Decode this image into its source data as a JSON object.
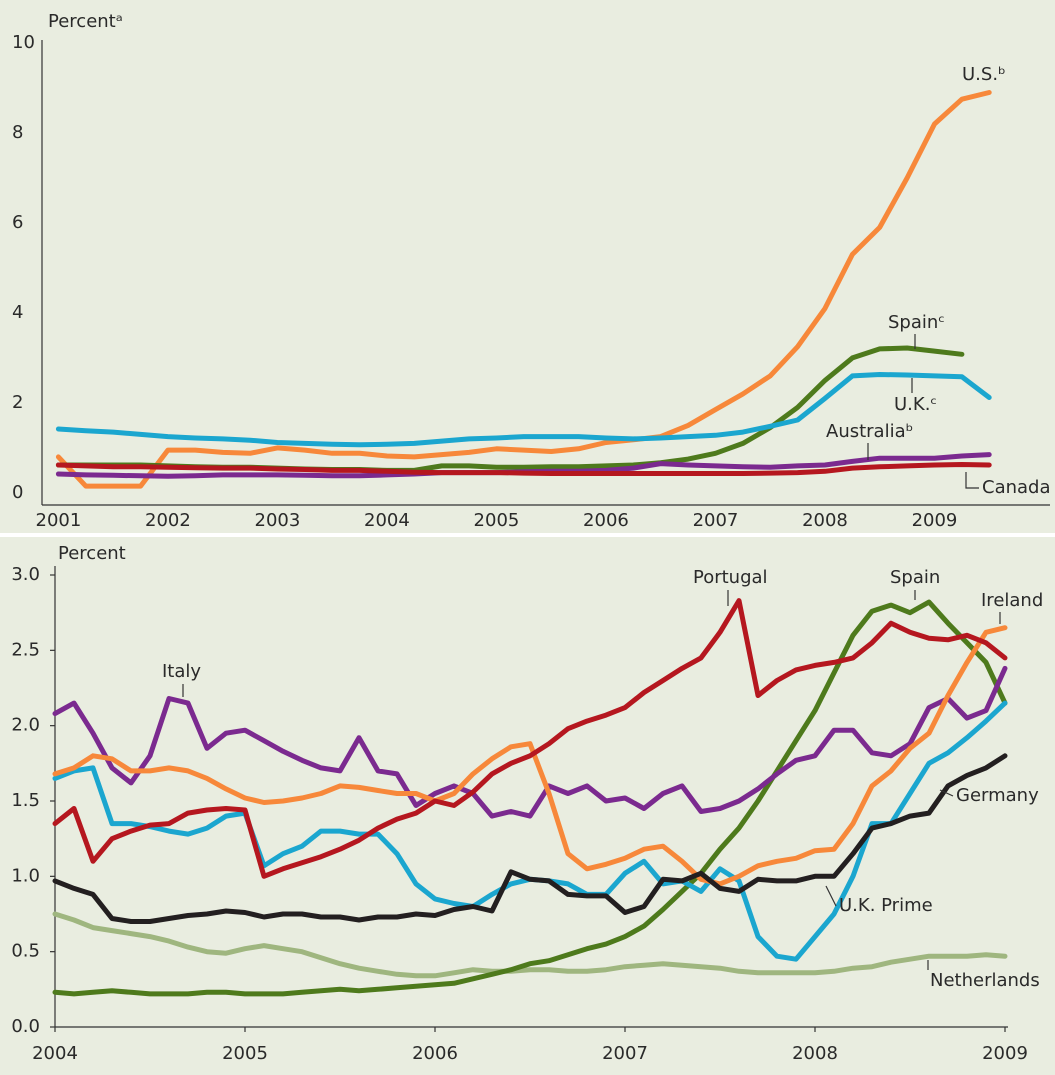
{
  "chart_data": [
    {
      "type": "line",
      "y_label": "Percentᵃ",
      "x": [
        2001,
        2001.25,
        2001.5,
        2001.75,
        2002,
        2002.25,
        2002.5,
        2002.75,
        2003,
        2003.25,
        2003.5,
        2003.75,
        2004,
        2004.25,
        2004.5,
        2004.75,
        2005,
        2005.25,
        2005.5,
        2005.75,
        2006,
        2006.25,
        2006.5,
        2006.75,
        2007,
        2007.25,
        2007.5,
        2007.75,
        2008,
        2008.25,
        2008.5,
        2008.75,
        2009,
        2009.25,
        2009.5
      ],
      "xlim": [
        2000.85,
        2010
      ],
      "xticks": [
        2001,
        2002,
        2003,
        2004,
        2005,
        2006,
        2007,
        2008,
        2009
      ],
      "ylim": [
        -0.27,
        10
      ],
      "yticks": [
        0,
        2,
        4,
        6,
        8,
        10
      ],
      "grid": false,
      "series": [
        {
          "name": "U.S.ᵇ",
          "color": "#f7883a",
          "values": [
            0.8,
            0.15,
            0.15,
            0.15,
            0.95,
            0.95,
            0.9,
            0.88,
            1.0,
            0.95,
            0.88,
            0.88,
            0.82,
            0.8,
            0.85,
            0.9,
            0.98,
            0.95,
            0.92,
            0.98,
            1.12,
            1.18,
            1.25,
            1.5,
            1.85,
            2.2,
            2.6,
            3.25,
            4.1,
            5.3,
            5.9,
            7.0,
            8.2,
            8.75,
            8.9
          ]
        },
        {
          "name": "Spainᶜ",
          "color": "#4e7a1c",
          "values": [
            0.62,
            0.62,
            0.62,
            0.62,
            0.6,
            0.58,
            0.57,
            0.57,
            0.55,
            0.53,
            0.52,
            0.52,
            0.5,
            0.5,
            0.6,
            0.6,
            0.57,
            0.57,
            0.58,
            0.58,
            0.6,
            0.62,
            0.67,
            0.75,
            0.88,
            1.1,
            1.45,
            1.9,
            2.5,
            3.0,
            3.2,
            3.22,
            3.15,
            3.08,
            null
          ]
        },
        {
          "name": "U.K.ᶜ",
          "color": "#1ba6cf",
          "values": [
            1.42,
            1.38,
            1.35,
            1.3,
            1.25,
            1.22,
            1.2,
            1.17,
            1.12,
            1.1,
            1.08,
            1.07,
            1.08,
            1.1,
            1.15,
            1.2,
            1.22,
            1.25,
            1.25,
            1.25,
            1.22,
            1.2,
            1.22,
            1.25,
            1.28,
            1.35,
            1.48,
            1.62,
            2.1,
            2.6,
            2.63,
            2.62,
            2.6,
            2.58,
            2.12
          ]
        },
        {
          "name": "Australiaᵇ",
          "color": "#7b2a8f",
          "values": [
            0.42,
            0.4,
            0.39,
            0.38,
            0.37,
            0.38,
            0.4,
            0.4,
            0.4,
            0.39,
            0.38,
            0.38,
            0.4,
            0.42,
            0.45,
            0.45,
            0.45,
            0.47,
            0.48,
            0.48,
            0.5,
            0.55,
            0.65,
            0.62,
            0.6,
            0.58,
            0.57,
            0.6,
            0.62,
            0.7,
            0.77,
            0.77,
            0.77,
            0.82,
            0.85
          ]
        },
        {
          "name": "Canada",
          "color": "#b5171f",
          "values": [
            0.62,
            0.6,
            0.58,
            0.58,
            0.57,
            0.56,
            0.55,
            0.55,
            0.53,
            0.52,
            0.5,
            0.5,
            0.48,
            0.46,
            0.45,
            0.45,
            0.45,
            0.44,
            0.43,
            0.43,
            0.43,
            0.43,
            0.43,
            0.43,
            0.43,
            0.43,
            0.44,
            0.45,
            0.48,
            0.55,
            0.58,
            0.6,
            0.62,
            0.63,
            0.62
          ]
        }
      ]
    },
    {
      "type": "line",
      "y_label": "Percent",
      "x": [
        2004,
        2004.1,
        2004.2,
        2004.3,
        2004.4,
        2004.5,
        2004.6,
        2004.7,
        2004.8,
        2004.9,
        2005,
        2005.1,
        2005.2,
        2005.3,
        2005.4,
        2005.5,
        2005.6,
        2005.7,
        2005.8,
        2005.9,
        2006,
        2006.1,
        2006.2,
        2006.3,
        2006.4,
        2006.5,
        2006.6,
        2006.7,
        2006.8,
        2006.9,
        2007,
        2007.1,
        2007.2,
        2007.3,
        2007.4,
        2007.5,
        2007.6,
        2007.7,
        2007.8,
        2007.9,
        2008,
        2008.1,
        2008.2,
        2008.3,
        2008.4,
        2008.5,
        2008.6,
        2008.7,
        2008.8,
        2008.9,
        2009
      ],
      "xlim": [
        2004,
        2009
      ],
      "xticks": [
        2004,
        2005,
        2006,
        2007,
        2008,
        2009
      ],
      "ylim": [
        0,
        3
      ],
      "yticks": [
        {
          "value": 0,
          "label": "0.0"
        },
        0.5,
        {
          "value": 1,
          "label": "1.0"
        },
        1.5,
        {
          "value": 2,
          "label": "2.0"
        },
        2.5,
        {
          "value": 3,
          "label": "3.0"
        }
      ],
      "grid": false,
      "series": [
        {
          "name": "Netherlands",
          "color": "#9fb67f",
          "values": [
            0.75,
            0.71,
            0.66,
            0.64,
            0.62,
            0.6,
            0.57,
            0.53,
            0.5,
            0.49,
            0.52,
            0.54,
            0.52,
            0.5,
            0.46,
            0.42,
            0.39,
            0.37,
            0.35,
            0.34,
            0.34,
            0.36,
            0.38,
            0.37,
            0.37,
            0.38,
            0.38,
            0.37,
            0.37,
            0.38,
            0.4,
            0.41,
            0.42,
            0.41,
            0.4,
            0.39,
            0.37,
            0.36,
            0.36,
            0.36,
            0.36,
            0.37,
            0.39,
            0.4,
            0.43,
            0.45,
            0.47,
            0.47,
            0.47,
            0.48,
            0.47
          ]
        },
        {
          "name": "Spain",
          "color": "#4e7a1c",
          "values": [
            0.23,
            0.22,
            0.23,
            0.24,
            0.23,
            0.22,
            0.22,
            0.22,
            0.23,
            0.23,
            0.22,
            0.22,
            0.22,
            0.23,
            0.24,
            0.25,
            0.24,
            0.25,
            0.26,
            0.27,
            0.28,
            0.29,
            0.32,
            0.35,
            0.38,
            0.42,
            0.44,
            0.48,
            0.52,
            0.55,
            0.6,
            0.67,
            0.78,
            0.9,
            1.02,
            1.18,
            1.32,
            1.5,
            1.7,
            1.9,
            2.1,
            2.35,
            2.6,
            2.76,
            2.8,
            2.75,
            2.82,
            2.68,
            2.55,
            2.42,
            2.15
          ]
        },
        {
          "name": "Italy",
          "color": "#7b2a8f",
          "values": [
            2.08,
            2.15,
            1.95,
            1.72,
            1.62,
            1.8,
            2.18,
            2.15,
            1.85,
            1.95,
            1.97,
            1.9,
            1.83,
            1.77,
            1.72,
            1.7,
            1.92,
            1.7,
            1.68,
            1.47,
            1.55,
            1.6,
            1.55,
            1.4,
            1.43,
            1.4,
            1.6,
            1.55,
            1.6,
            1.5,
            1.52,
            1.45,
            1.55,
            1.6,
            1.43,
            1.45,
            1.5,
            1.58,
            1.68,
            1.77,
            1.8,
            1.97,
            1.97,
            1.82,
            1.8,
            1.88,
            2.12,
            2.18,
            2.05,
            2.1,
            2.38
          ]
        },
        {
          "name": "U.K. Prime",
          "color": "#1ba6cf",
          "values": [
            1.65,
            1.7,
            1.72,
            1.35,
            1.35,
            1.33,
            1.3,
            1.28,
            1.32,
            1.4,
            1.42,
            1.07,
            1.15,
            1.2,
            1.3,
            1.3,
            1.28,
            1.28,
            1.15,
            0.95,
            0.85,
            0.82,
            0.8,
            0.88,
            0.95,
            0.98,
            0.97,
            0.95,
            0.88,
            0.88,
            1.02,
            1.1,
            0.95,
            0.97,
            0.9,
            1.05,
            0.97,
            0.6,
            0.47,
            0.45,
            0.6,
            0.75,
            1.0,
            1.35,
            1.35,
            1.55,
            1.75,
            1.82,
            1.92,
            2.03,
            2.15
          ]
        },
        {
          "name": "Ireland",
          "color": "#f7883a",
          "values": [
            1.68,
            1.72,
            1.8,
            1.78,
            1.7,
            1.7,
            1.72,
            1.7,
            1.65,
            1.58,
            1.52,
            1.49,
            1.5,
            1.52,
            1.55,
            1.6,
            1.59,
            1.57,
            1.55,
            1.55,
            1.5,
            1.55,
            1.68,
            1.78,
            1.86,
            1.88,
            1.55,
            1.15,
            1.05,
            1.08,
            1.12,
            1.18,
            1.2,
            1.1,
            0.98,
            0.95,
            1.0,
            1.07,
            1.1,
            1.12,
            1.17,
            1.18,
            1.35,
            1.6,
            1.7,
            1.85,
            1.95,
            2.2,
            2.42,
            2.62,
            2.65
          ]
        },
        {
          "name": "Germany",
          "color": "#231f20",
          "values": [
            0.97,
            0.92,
            0.88,
            0.72,
            0.7,
            0.7,
            0.72,
            0.74,
            0.75,
            0.77,
            0.76,
            0.73,
            0.75,
            0.75,
            0.73,
            0.73,
            0.71,
            0.73,
            0.73,
            0.75,
            0.74,
            0.78,
            0.8,
            0.77,
            1.03,
            0.98,
            0.97,
            0.88,
            0.87,
            0.87,
            0.76,
            0.8,
            0.98,
            0.97,
            1.02,
            0.92,
            0.9,
            0.98,
            0.97,
            0.97,
            1.0,
            1.0,
            1.15,
            1.32,
            1.35,
            1.4,
            1.42,
            1.6,
            1.67,
            1.72,
            1.8
          ]
        },
        {
          "name": "Portugal",
          "color": "#b5171f",
          "values": [
            1.35,
            1.45,
            1.1,
            1.25,
            1.3,
            1.34,
            1.35,
            1.42,
            1.44,
            1.45,
            1.44,
            1.0,
            1.05,
            1.09,
            1.13,
            1.18,
            1.24,
            1.32,
            1.38,
            1.42,
            1.5,
            1.47,
            1.56,
            1.68,
            1.75,
            1.8,
            1.88,
            1.98,
            2.03,
            2.07,
            2.12,
            2.22,
            2.3,
            2.38,
            2.45,
            2.62,
            2.83,
            2.2,
            2.3,
            2.37,
            2.4,
            2.42,
            2.45,
            2.55,
            2.68,
            2.62,
            2.58,
            2.57,
            2.6,
            2.55,
            2.45
          ]
        }
      ]
    }
  ]
}
